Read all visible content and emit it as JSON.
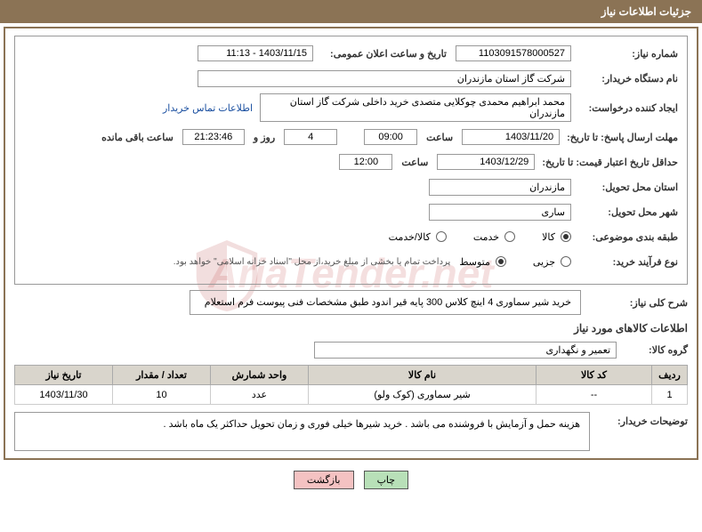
{
  "header_title": "جزئیات اطلاعات نیاز",
  "fields": {
    "need_no_label": "شماره نیاز:",
    "need_no": "1103091578000527",
    "announce_label": "تاریخ و ساعت اعلان عمومی:",
    "announce_value": "1403/11/15 - 11:13",
    "buyer_org_label": "نام دستگاه خریدار:",
    "buyer_org": "شرکت گاز استان مازندران",
    "requester_label": "ایجاد کننده درخواست:",
    "requester": "محمد ابراهیم محمدی چوکلایی متصدی خرید داخلی شرکت گاز استان مازندران",
    "contact_link": "اطلاعات تماس خریدار",
    "deadline_label": "مهلت ارسال پاسخ: تا تاریخ:",
    "deadline_date": "1403/11/20",
    "hour_label": "ساعت",
    "deadline_time": "09:00",
    "days_value": "4",
    "days_label": "روز و",
    "remain_time": "21:23:46",
    "remain_label": "ساعت باقی مانده",
    "validity_label": "حداقل تاریخ اعتبار قیمت: تا تاریخ:",
    "validity_date": "1403/12/29",
    "validity_time": "12:00",
    "province_label": "استان محل تحویل:",
    "province": "مازندران",
    "city_label": "شهر محل تحویل:",
    "city": "ساری",
    "category_label": "طبقه بندی موضوعی:",
    "cat_goods": "کالا",
    "cat_service": "خدمت",
    "cat_both": "کالا/خدمت",
    "process_label": "نوع فرآیند خرید:",
    "proc_partial": "جزیی",
    "proc_medium": "متوسط",
    "process_note": "پرداخت تمام یا بخشی از مبلغ خرید،از محل \"اسناد خزانه اسلامی\" خواهد بود.",
    "desc_label": "شرح کلی نیاز:",
    "desc_text": "خرید شیر سماوری 4 اینچ کلاس 300 پایه قیر اندود طبق مشخصات فنی پیوست فرم استعلام",
    "goods_section": "اطلاعات کالاهای مورد نیاز",
    "group_label": "گروه کالا:",
    "group_value": "تعمیر و نگهداری",
    "buyer_notes_label": "توضیحات خریدار:",
    "buyer_notes": "هزینه حمل و آزمایش با فروشنده می باشد . خرید شیرها خیلی فوری و زمان تحویل حداکثر یک ماه باشد .",
    "btn_print": "چاپ",
    "btn_back": "بازگشت"
  },
  "table": {
    "headers": [
      "ردیف",
      "کد کالا",
      "نام کالا",
      "واحد شمارش",
      "تعداد / مقدار",
      "تاریخ نیاز"
    ],
    "col_widths": [
      "40px",
      "130px",
      "auto",
      "110px",
      "110px",
      "110px"
    ],
    "rows": [
      [
        "1",
        "--",
        "شیر سماوری (کوک ولو)",
        "عدد",
        "10",
        "1403/11/30"
      ]
    ]
  },
  "colors": {
    "header_bg": "#8b7355",
    "header_fg": "#ffffff",
    "border": "#8b7355",
    "inner_border": "#999999",
    "th_bg": "#d9d5cc",
    "link": "#1a4fa0",
    "btn_green": "#b8e0b8",
    "btn_pink": "#f4c2c2",
    "watermark": "rgba(180,40,40,0.15)"
  },
  "watermark_text": "AriaTender.net"
}
